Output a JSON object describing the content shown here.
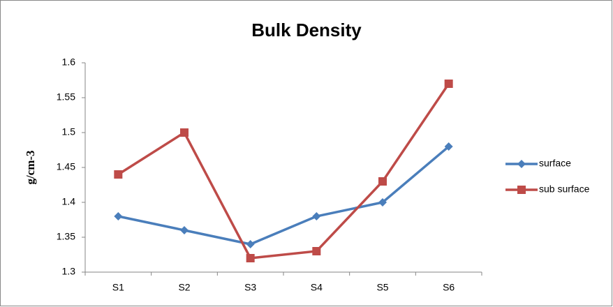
{
  "chart_data": {
    "type": "line",
    "title": "Bulk Density",
    "y_label": "g/cm-3",
    "categories": [
      "S1",
      "S2",
      "S3",
      "S4",
      "S5",
      "S6"
    ],
    "series": [
      {
        "name": "surface",
        "color": "#4a7ebb",
        "marker": "diamond",
        "values": [
          1.38,
          1.36,
          1.34,
          1.38,
          1.4,
          1.48
        ]
      },
      {
        "name": "sub surface",
        "color": "#be4b48",
        "marker": "square",
        "values": [
          1.44,
          1.5,
          1.32,
          1.33,
          1.43,
          1.57
        ]
      }
    ],
    "ylim": [
      1.3,
      1.6
    ],
    "yticks": [
      1.3,
      1.35,
      1.4,
      1.45,
      1.5,
      1.55,
      1.6
    ],
    "grid": false,
    "legend": "right"
  }
}
